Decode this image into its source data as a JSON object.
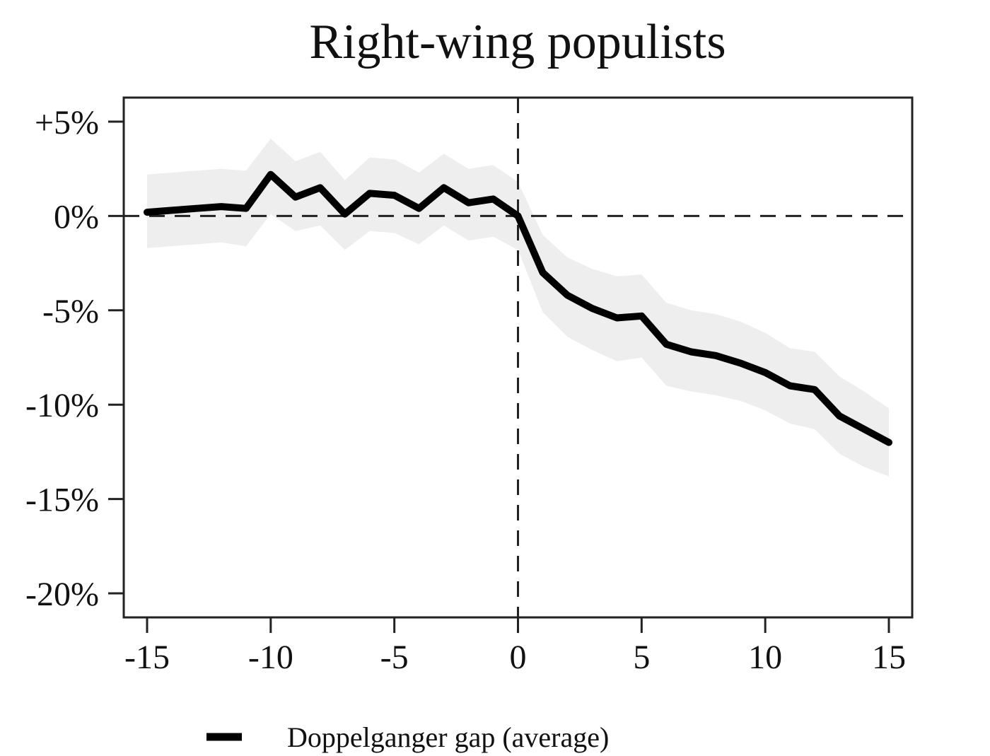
{
  "chart_data": {
    "type": "line",
    "title": "Right-wing populists",
    "xlabel": "",
    "ylabel": "",
    "xlim": [
      -15,
      15
    ],
    "ylim": [
      -20,
      5
    ],
    "x_ticks": [
      -15,
      -10,
      -5,
      0,
      5,
      10,
      15
    ],
    "x_tick_labels": [
      "-15",
      "-10",
      "-5",
      "0",
      "5",
      "10",
      "15"
    ],
    "y_ticks": [
      5,
      0,
      -5,
      -10,
      -15,
      -20
    ],
    "y_tick_labels": [
      "+5%",
      "0%",
      "-5%",
      "-10%",
      "-15%",
      "-20%"
    ],
    "reference_lines": {
      "x": 0,
      "y": 0,
      "style": "dashed"
    },
    "grid": false,
    "legend_position": "bottom",
    "colors": {
      "line": "#000000",
      "band": "#eeeeee",
      "reference": "#222222",
      "axes": "#222222"
    },
    "series": [
      {
        "name": "Doppelganger gap (average)",
        "x": [
          -15,
          -14,
          -13,
          -12,
          -11,
          -10,
          -9,
          -8,
          -7,
          -6,
          -5,
          -4,
          -3,
          -2,
          -1,
          0,
          1,
          2,
          3,
          4,
          5,
          6,
          7,
          8,
          9,
          10,
          11,
          12,
          13,
          14,
          15
        ],
        "y": [
          0.2,
          0.3,
          0.4,
          0.5,
          0.4,
          2.2,
          1.0,
          1.5,
          0.1,
          1.2,
          1.1,
          0.4,
          1.5,
          0.7,
          0.9,
          0.0,
          -3.0,
          -4.2,
          -4.9,
          -5.4,
          -5.3,
          -6.8,
          -7.2,
          -7.4,
          -7.8,
          -8.3,
          -9.0,
          -9.2,
          -10.6,
          -11.3,
          -12.0
        ]
      }
    ],
    "confidence_band": {
      "x": [
        -15,
        -14,
        -13,
        -12,
        -11,
        -10,
        -9,
        -8,
        -7,
        -6,
        -5,
        -4,
        -3,
        -2,
        -1,
        0,
        1,
        2,
        3,
        4,
        5,
        6,
        7,
        8,
        9,
        10,
        11,
        12,
        13,
        14,
        15
      ],
      "lower": [
        -1.7,
        -1.6,
        -1.5,
        -1.4,
        -1.6,
        0.1,
        -0.8,
        -0.5,
        -1.8,
        -0.8,
        -0.9,
        -1.5,
        -0.5,
        -1.3,
        -1.1,
        -1.8,
        -5.1,
        -6.4,
        -7.1,
        -7.7,
        -7.5,
        -9.0,
        -9.3,
        -9.5,
        -9.8,
        -10.3,
        -11.0,
        -11.3,
        -12.6,
        -13.3,
        -13.8
      ],
      "upper": [
        2.2,
        2.3,
        2.4,
        2.5,
        2.4,
        4.1,
        2.9,
        3.4,
        1.9,
        3.1,
        3.0,
        2.3,
        3.3,
        2.5,
        2.7,
        1.8,
        -1.0,
        -2.2,
        -2.8,
        -3.2,
        -3.1,
        -4.6,
        -5.0,
        -5.2,
        -5.6,
        -6.2,
        -7.0,
        -7.2,
        -8.5,
        -9.3,
        -10.2
      ]
    }
  }
}
